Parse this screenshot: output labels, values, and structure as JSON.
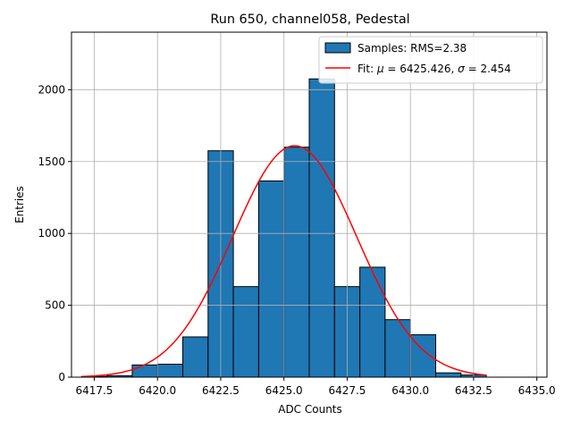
{
  "chart_data": {
    "type": "bar",
    "title": "Run 650, channel058, Pedestal",
    "xlabel": "ADC Counts",
    "ylabel": "Entries",
    "xlim": [
      6416.6,
      6435.4
    ],
    "ylim": [
      0,
      2400
    ],
    "xticks": [
      6417.5,
      6420.0,
      6422.5,
      6425.0,
      6427.5,
      6430.0,
      6432.5,
      6435.0
    ],
    "xtick_labels": [
      "6417.5",
      "6420.0",
      "6422.5",
      "6425.0",
      "6427.5",
      "6430.0",
      "6432.5",
      "6435.0"
    ],
    "yticks": [
      0,
      500,
      1000,
      1500,
      2000
    ],
    "ytick_labels": [
      "0",
      "500",
      "1000",
      "1500",
      "2000"
    ],
    "grid": true,
    "legend_position": "top-right",
    "colors": {
      "bars": "#1f77b4",
      "bar_edge": "#000000",
      "fit": "#ff0000",
      "grid": "#b0b0b0"
    },
    "bins": [
      {
        "x0": 6417.0,
        "x1": 6418.0,
        "count": 5
      },
      {
        "x0": 6418.0,
        "x1": 6419.0,
        "count": 10
      },
      {
        "x0": 6419.0,
        "x1": 6420.0,
        "count": 85
      },
      {
        "x0": 6420.0,
        "x1": 6421.0,
        "count": 90
      },
      {
        "x0": 6421.0,
        "x1": 6422.0,
        "count": 280
      },
      {
        "x0": 6422.0,
        "x1": 6423.0,
        "count": 1575
      },
      {
        "x0": 6423.0,
        "x1": 6424.0,
        "count": 630
      },
      {
        "x0": 6424.0,
        "x1": 6425.0,
        "count": 1365
      },
      {
        "x0": 6425.0,
        "x1": 6426.0,
        "count": 1600
      },
      {
        "x0": 6426.0,
        "x1": 6427.0,
        "count": 2075
      },
      {
        "x0": 6427.0,
        "x1": 6428.0,
        "count": 630
      },
      {
        "x0": 6428.0,
        "x1": 6429.0,
        "count": 765
      },
      {
        "x0": 6429.0,
        "x1": 6430.0,
        "count": 400
      },
      {
        "x0": 6430.0,
        "x1": 6431.0,
        "count": 295
      },
      {
        "x0": 6431.0,
        "x1": 6432.0,
        "count": 30
      },
      {
        "x0": 6432.0,
        "x1": 6433.0,
        "count": 15
      }
    ],
    "fit": {
      "mu": 6425.426,
      "sigma": 2.454,
      "amplitude": 1610,
      "x_range": [
        6417.0,
        6433.0
      ]
    },
    "legend": [
      {
        "kind": "patch",
        "label": "Samples: RMS=2.38"
      },
      {
        "kind": "line",
        "label_prefix": "Fit: ",
        "mu_symbol": "μ",
        "mu_text": " = 6425.426, ",
        "sigma_symbol": "σ",
        "sigma_text": " = 2.454"
      }
    ]
  }
}
